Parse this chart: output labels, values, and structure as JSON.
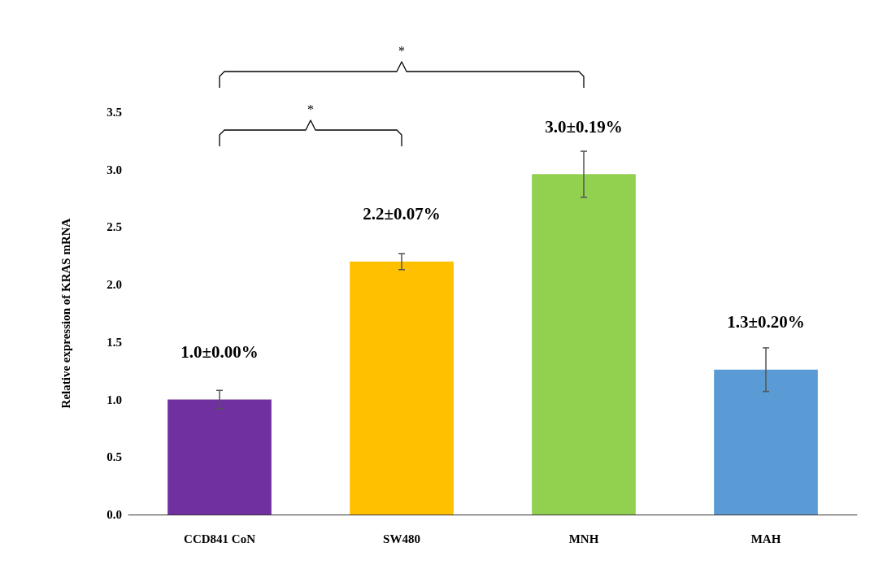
{
  "chart_data": {
    "type": "bar",
    "ylabel": "Relative expression of KRAS mRNA",
    "categories": [
      "CCD841 CoN",
      "SW480",
      "MNH",
      "MAH"
    ],
    "values": [
      1.0,
      2.2,
      2.96,
      1.26
    ],
    "colors": [
      "#7030a0",
      "#ffc000",
      "#92d050",
      "#5b9bd5"
    ],
    "errors": [
      0.08,
      0.07,
      0.2,
      0.19
    ],
    "value_labels": [
      "1.0±0.00%",
      "2.2±0.07%",
      "3.0±0.19%",
      "1.3±0.20%"
    ],
    "ylim": [
      0,
      3.5
    ],
    "yticks": [
      {
        "value": 0,
        "label": "0.0"
      },
      {
        "value": 0.5,
        "label": "0.5"
      },
      {
        "value": 1,
        "label": "1.0"
      },
      {
        "value": 1.5,
        "label": "1.5"
      },
      {
        "value": 2,
        "label": "2.0"
      },
      {
        "value": 2.5,
        "label": "2.5"
      },
      {
        "value": 3,
        "label": "3.0"
      },
      {
        "value": 3.5,
        "label": "3.5"
      }
    ],
    "annotations": [
      "*",
      "*"
    ],
    "grid": false
  }
}
